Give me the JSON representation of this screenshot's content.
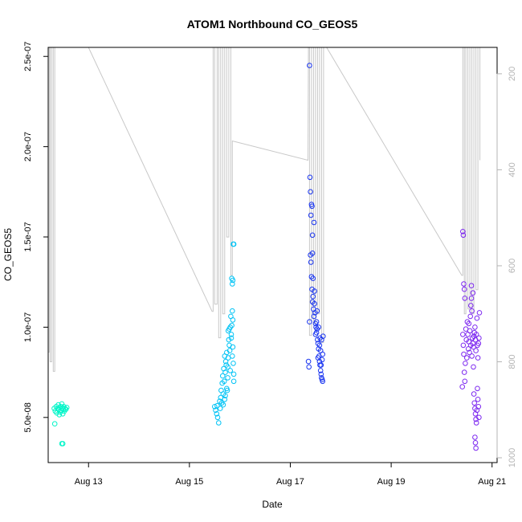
{
  "chart_data": {
    "type": "scatter",
    "title": "ATOM1 Northbound CO_GEOS5",
    "xlabel": "Date",
    "ylabel": "CO_GEOS5",
    "x_unit": "date (August)",
    "xlim": [
      12.2,
      21.1
    ],
    "ylim": [
      2.5e-08,
      2.55e-07
    ],
    "x_ticks": [
      {
        "value": 13,
        "label": "Aug 13"
      },
      {
        "value": 15,
        "label": "Aug 15"
      },
      {
        "value": 17,
        "label": "Aug 17"
      },
      {
        "value": 19,
        "label": "Aug 19"
      },
      {
        "value": 21,
        "label": "Aug 21"
      }
    ],
    "y_ticks": [
      {
        "value": 5e-08,
        "label": "5.0e-08"
      },
      {
        "value": 1e-07,
        "label": "1.0e-07"
      },
      {
        "value": 1.5e-07,
        "label": "1.5e-07"
      },
      {
        "value": 2e-07,
        "label": "2.0e-07"
      },
      {
        "value": 2.5e-07,
        "label": "2.5e-07"
      }
    ],
    "y2_ticks": [
      {
        "value": 200,
        "label": "200"
      },
      {
        "value": 400,
        "label": "400"
      },
      {
        "value": 600,
        "label": "600"
      },
      {
        "value": 800,
        "label": "800"
      },
      {
        "value": 1000,
        "label": "1000"
      }
    ],
    "y2_range_reversed": [
      1010,
      145
    ],
    "grid": false,
    "pressure_line_color": "#c8c8c8",
    "series": [
      {
        "color": "#00f5c8",
        "points": [
          [
            12.32,
            5.5e-08
          ],
          [
            12.34,
            5.35e-08
          ],
          [
            12.36,
            5.6e-08
          ],
          [
            12.37,
            5.25e-08
          ],
          [
            12.39,
            5.5e-08
          ],
          [
            12.4,
            5.7e-08
          ],
          [
            12.41,
            5.45e-08
          ],
          [
            12.42,
            5.15e-08
          ],
          [
            12.43,
            5.55e-08
          ],
          [
            12.44,
            5.3e-08
          ],
          [
            12.45,
            5.6e-08
          ],
          [
            12.46,
            5.4e-08
          ],
          [
            12.47,
            5.75e-08
          ],
          [
            12.48,
            5.5e-08
          ],
          [
            12.49,
            5.2e-08
          ],
          [
            12.5,
            5.45e-08
          ],
          [
            12.51,
            5.6e-08
          ],
          [
            12.52,
            5.35e-08
          ],
          [
            12.53,
            5.5e-08
          ],
          [
            12.55,
            5.45e-08
          ],
          [
            12.57,
            5.55e-08
          ],
          [
            12.33,
            4.65e-08
          ],
          [
            12.47,
            3.55e-08
          ],
          [
            12.49,
            3.55e-08
          ]
        ]
      },
      {
        "color": "#00c3f5",
        "points": [
          [
            15.5,
            5.6e-08
          ],
          [
            15.52,
            5.4e-08
          ],
          [
            15.54,
            5.2e-08
          ],
          [
            15.55,
            5.65e-08
          ],
          [
            15.56,
            5e-08
          ],
          [
            15.58,
            4.7e-08
          ],
          [
            15.6,
            5.9e-08
          ],
          [
            15.61,
            5.5e-08
          ],
          [
            15.62,
            6.1e-08
          ],
          [
            15.63,
            6.5e-08
          ],
          [
            15.64,
            5.8e-08
          ],
          [
            15.65,
            6.9e-08
          ],
          [
            15.66,
            7.3e-08
          ],
          [
            15.67,
            6.3e-08
          ],
          [
            15.68,
            7.7e-08
          ],
          [
            15.69,
            7e-08
          ],
          [
            15.7,
            6e-08
          ],
          [
            15.71,
            7.5e-08
          ],
          [
            15.72,
            8.1e-08
          ],
          [
            15.73,
            7.9e-08
          ],
          [
            15.74,
            8.6e-08
          ],
          [
            15.75,
            6.5e-08
          ],
          [
            15.76,
            7.2e-08
          ],
          [
            15.77,
            8.3e-08
          ],
          [
            15.78,
            9.3e-08
          ],
          [
            15.79,
            9.9e-08
          ],
          [
            15.8,
            8.7e-08
          ],
          [
            15.81,
            7.6e-08
          ],
          [
            15.82,
            1.06e-07
          ],
          [
            15.83,
            9.6e-08
          ],
          [
            15.84,
            1.01e-07
          ],
          [
            15.85,
            1.09e-07
          ],
          [
            15.86,
            1.04e-07
          ],
          [
            15.87,
            8e-08
          ],
          [
            15.88,
            7.4e-08
          ],
          [
            15.84,
            1.27e-07
          ],
          [
            15.85,
            1.24e-07
          ],
          [
            15.86,
            1.26e-07
          ],
          [
            15.87,
            1.46e-07
          ],
          [
            15.88,
            1.46e-07
          ],
          [
            15.67,
            5.7e-08
          ],
          [
            15.71,
            6.2e-08
          ],
          [
            15.74,
            6.6e-08
          ],
          [
            15.76,
            7.8e-08
          ],
          [
            15.79,
            9e-08
          ],
          [
            15.83,
            9.4e-08
          ],
          [
            15.85,
            8.4e-08
          ],
          [
            15.88,
            7e-08
          ],
          [
            15.7,
            8.4e-08
          ],
          [
            15.77,
            9.8e-08
          ],
          [
            15.81,
            1e-07
          ],
          [
            15.86,
            8.9e-08
          ]
        ]
      },
      {
        "color": "#1a35f0",
        "points": [
          [
            17.38,
            2.45e-07
          ],
          [
            17.39,
            1.83e-07
          ],
          [
            17.4,
            1.75e-07
          ],
          [
            17.41,
            1.62e-07
          ],
          [
            17.42,
            1.68e-07
          ],
          [
            17.43,
            1.67e-07
          ],
          [
            17.44,
            1.51e-07
          ],
          [
            17.4,
            1.4e-07
          ],
          [
            17.41,
            1.36e-07
          ],
          [
            17.42,
            1.28e-07
          ],
          [
            17.43,
            1.21e-07
          ],
          [
            17.44,
            1.14e-07
          ],
          [
            17.45,
            1.17e-07
          ],
          [
            17.46,
            1.1e-07
          ],
          [
            17.47,
            1.06e-07
          ],
          [
            17.48,
            1.13e-07
          ],
          [
            17.49,
            1.08e-07
          ],
          [
            17.5,
            1.02e-07
          ],
          [
            17.51,
            1e-07
          ],
          [
            17.52,
            9.7e-08
          ],
          [
            17.53,
            1.09e-07
          ],
          [
            17.54,
            9.3e-08
          ],
          [
            17.55,
            9.1e-08
          ],
          [
            17.56,
            8.8e-08
          ],
          [
            17.57,
            8.4e-08
          ],
          [
            17.58,
            8.1e-08
          ],
          [
            17.59,
            7.9e-08
          ],
          [
            17.6,
            7.6e-08
          ],
          [
            17.61,
            7.4e-08
          ],
          [
            17.62,
            7.2e-08
          ],
          [
            17.63,
            7.1e-08
          ],
          [
            17.64,
            7e-08
          ],
          [
            17.36,
            8.1e-08
          ],
          [
            17.37,
            7.8e-08
          ],
          [
            17.38,
            1.03e-07
          ],
          [
            17.45,
            1.27e-07
          ],
          [
            17.48,
            1.2e-07
          ],
          [
            17.5,
            9.6e-08
          ],
          [
            17.53,
            9.9e-08
          ],
          [
            17.55,
            8.3e-08
          ],
          [
            17.58,
            9e-08
          ],
          [
            17.6,
            8.7e-08
          ],
          [
            17.62,
            9.3e-08
          ],
          [
            17.64,
            8.5e-08
          ],
          [
            17.65,
            9.5e-08
          ],
          [
            17.47,
            1.58e-07
          ],
          [
            17.44,
            1.41e-07
          ],
          [
            17.52,
            1.03e-07
          ],
          [
            17.56,
            1e-07
          ],
          [
            17.61,
            7.9e-08
          ],
          [
            17.63,
            8.2e-08
          ],
          [
            17.59,
            9.4e-08
          ]
        ]
      },
      {
        "color": "#7d28f0",
        "points": [
          [
            20.42,
            1.53e-07
          ],
          [
            20.43,
            1.51e-07
          ],
          [
            20.44,
            1.24e-07
          ],
          [
            20.45,
            1.21e-07
          ],
          [
            20.46,
            1.16e-07
          ],
          [
            20.42,
            9.6e-08
          ],
          [
            20.43,
            9e-08
          ],
          [
            20.44,
            8.5e-08
          ],
          [
            20.45,
            7.5e-08
          ],
          [
            20.46,
            7e-08
          ],
          [
            20.41,
            6.7e-08
          ],
          [
            20.47,
            8e-08
          ],
          [
            20.48,
            9.9e-08
          ],
          [
            20.49,
            9.3e-08
          ],
          [
            20.5,
            8.3e-08
          ],
          [
            20.51,
            1.03e-07
          ],
          [
            20.52,
            9.6e-08
          ],
          [
            20.53,
            8.8e-08
          ],
          [
            20.54,
            9.2e-08
          ],
          [
            20.55,
            8.6e-08
          ],
          [
            20.56,
            9.8e-08
          ],
          [
            20.57,
            1.06e-07
          ],
          [
            20.58,
            1.12e-07
          ],
          [
            20.59,
            1.16e-07
          ],
          [
            20.6,
            1.09e-07
          ],
          [
            20.61,
            9.4e-08
          ],
          [
            20.62,
            9.1e-08
          ],
          [
            20.63,
            8.9e-08
          ],
          [
            20.64,
            9.5e-08
          ],
          [
            20.65,
            9.7e-08
          ],
          [
            20.66,
            1e-07
          ],
          [
            20.67,
            9.3e-08
          ],
          [
            20.68,
            8.7e-08
          ],
          [
            20.69,
            9.6e-08
          ],
          [
            20.7,
            1.05e-07
          ],
          [
            20.71,
            9e-08
          ],
          [
            20.72,
            8.3e-08
          ],
          [
            20.73,
            9.1e-08
          ],
          [
            20.74,
            9.4e-08
          ],
          [
            20.75,
            1.08e-07
          ],
          [
            20.59,
            1.23e-07
          ],
          [
            20.62,
            1.19e-07
          ],
          [
            20.64,
            6.3e-08
          ],
          [
            20.65,
            5.8e-08
          ],
          [
            20.66,
            5.5e-08
          ],
          [
            20.67,
            5.2e-08
          ],
          [
            20.68,
            4.9e-08
          ],
          [
            20.69,
            4.7e-08
          ],
          [
            20.7,
            5.4e-08
          ],
          [
            20.71,
            6.6e-08
          ],
          [
            20.72,
            6e-08
          ],
          [
            20.73,
            5.6e-08
          ],
          [
            20.74,
            5e-08
          ],
          [
            20.66,
            3.9e-08
          ],
          [
            20.67,
            3.6e-08
          ],
          [
            20.68,
            3.3e-08
          ],
          [
            20.6,
            8.4e-08
          ],
          [
            20.63,
            7.8e-08
          ],
          [
            20.58,
            9e-08
          ],
          [
            20.54,
            1.02e-07
          ]
        ]
      }
    ],
    "pressure_profile": [
      [
        12.18,
        200
      ],
      [
        12.18,
        780
      ],
      [
        12.22,
        780
      ],
      [
        12.22,
        145
      ],
      [
        12.24,
        145
      ],
      [
        12.24,
        800
      ],
      [
        12.27,
        800
      ],
      [
        12.27,
        145
      ],
      [
        12.3,
        145
      ],
      [
        12.3,
        820
      ],
      [
        12.33,
        820
      ],
      [
        12.33,
        145
      ],
      [
        12.35,
        145
      ],
      [
        12.35,
        140
      ],
      [
        13.0,
        145
      ],
      [
        15.45,
        695
      ],
      [
        15.47,
        695
      ],
      [
        15.47,
        145
      ],
      [
        15.5,
        145
      ],
      [
        15.5,
        680
      ],
      [
        15.55,
        680
      ],
      [
        15.55,
        145
      ],
      [
        15.58,
        145
      ],
      [
        15.58,
        750
      ],
      [
        15.62,
        750
      ],
      [
        15.62,
        145
      ],
      [
        15.66,
        145
      ],
      [
        15.66,
        700
      ],
      [
        15.7,
        700
      ],
      [
        15.7,
        145
      ],
      [
        15.74,
        145
      ],
      [
        15.74,
        540
      ],
      [
        15.78,
        540
      ],
      [
        15.78,
        145
      ],
      [
        15.82,
        145
      ],
      [
        15.82,
        620
      ],
      [
        15.85,
        620
      ],
      [
        15.85,
        340
      ],
      [
        17.35,
        380
      ],
      [
        17.36,
        145
      ],
      [
        17.38,
        145
      ],
      [
        17.38,
        745
      ],
      [
        17.42,
        745
      ],
      [
        17.42,
        145
      ],
      [
        17.46,
        145
      ],
      [
        17.46,
        720
      ],
      [
        17.5,
        720
      ],
      [
        17.5,
        145
      ],
      [
        17.54,
        145
      ],
      [
        17.54,
        700
      ],
      [
        17.58,
        700
      ],
      [
        17.58,
        145
      ],
      [
        17.62,
        145
      ],
      [
        17.62,
        760
      ],
      [
        17.66,
        760
      ],
      [
        17.66,
        145
      ],
      [
        17.72,
        145
      ],
      [
        20.4,
        620
      ],
      [
        20.42,
        620
      ],
      [
        20.42,
        145
      ],
      [
        20.45,
        145
      ],
      [
        20.45,
        700
      ],
      [
        20.48,
        700
      ],
      [
        20.48,
        145
      ],
      [
        20.52,
        145
      ],
      [
        20.52,
        690
      ],
      [
        20.56,
        690
      ],
      [
        20.56,
        145
      ],
      [
        20.6,
        145
      ],
      [
        20.6,
        700
      ],
      [
        20.64,
        700
      ],
      [
        20.64,
        145
      ],
      [
        20.68,
        145
      ],
      [
        20.68,
        650
      ],
      [
        20.72,
        650
      ],
      [
        20.72,
        145
      ],
      [
        20.76,
        145
      ],
      [
        20.76,
        380
      ]
    ]
  }
}
